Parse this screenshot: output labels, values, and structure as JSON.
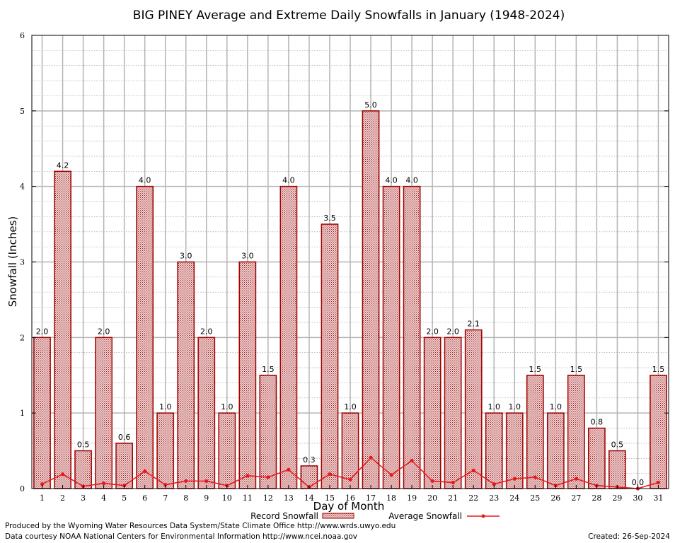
{
  "chart_data": {
    "type": "bar",
    "title": "BIG PINEY Average and Extreme Daily Snowfalls in January (1948-2024)",
    "xlabel": "Day of Month",
    "ylabel": "Snowfall (Inches)",
    "ylim": [
      0,
      6
    ],
    "yticks": [
      "0",
      "1",
      "2",
      "3",
      "4",
      "5",
      "6"
    ],
    "categories": [
      "1",
      "2",
      "3",
      "4",
      "5",
      "6",
      "7",
      "8",
      "9",
      "10",
      "11",
      "12",
      "13",
      "14",
      "15",
      "16",
      "17",
      "18",
      "19",
      "20",
      "21",
      "22",
      "23",
      "24",
      "25",
      "26",
      "27",
      "28",
      "29",
      "30",
      "31"
    ],
    "grid": true,
    "legend_position": "bottom",
    "series": [
      {
        "name": "Record Snowfall",
        "type": "bar",
        "color": "#a00000",
        "values": [
          2.0,
          4.2,
          0.5,
          2.0,
          0.6,
          4.0,
          1.0,
          3.0,
          2.0,
          1.0,
          3.0,
          1.5,
          4.0,
          0.3,
          3.5,
          1.0,
          5.0,
          4.0,
          4.0,
          2.0,
          2.0,
          2.1,
          1.0,
          1.0,
          1.5,
          1.0,
          1.5,
          0.8,
          0.5,
          0.0,
          1.5
        ],
        "labels": [
          "2.0",
          "4.2",
          "0.5",
          "2.0",
          "0.6",
          "4.0",
          "1.0",
          "3.0",
          "2.0",
          "1.0",
          "3.0",
          "1.5",
          "4.0",
          "0.3",
          "3.5",
          "1.0",
          "5.0",
          "4.0",
          "4.0",
          "2.0",
          "2.0",
          "2.1",
          "1.0",
          "1.0",
          "1.5",
          "1.0",
          "1.5",
          "0.8",
          "0.5",
          "0.0",
          "1.5"
        ]
      },
      {
        "name": "Average Snowfall",
        "type": "line",
        "color": "#e8191e",
        "values": [
          0.06,
          0.19,
          0.03,
          0.07,
          0.04,
          0.23,
          0.05,
          0.1,
          0.1,
          0.04,
          0.17,
          0.15,
          0.25,
          0.02,
          0.19,
          0.12,
          0.41,
          0.18,
          0.37,
          0.1,
          0.08,
          0.24,
          0.06,
          0.13,
          0.15,
          0.04,
          0.13,
          0.04,
          0.02,
          0.0,
          0.08
        ]
      }
    ]
  },
  "footer": {
    "credit_line1": "Produced by the Wyoming Water Resources Data System/State Climate Office http://www.wrds.uwyo.edu",
    "credit_line2": "Data courtesy NOAA National Centers for Environmental Information http://www.ncei.noaa.gov",
    "created": "Created:  26-Sep-2024"
  }
}
